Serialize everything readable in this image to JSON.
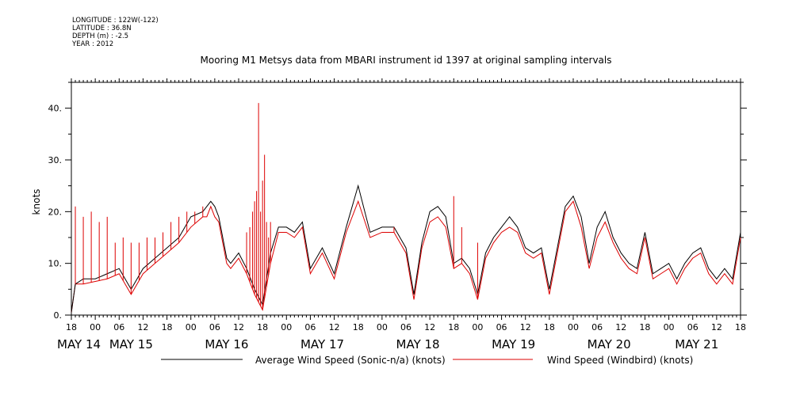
{
  "meta": {
    "longitude": "LONGITUDE : 122W(-122)",
    "latitude": "LATITUDE : 36.8N",
    "depth": "DEPTH (m) : -2.5",
    "year": "YEAR : 2012"
  },
  "chart_data": {
    "type": "line",
    "title": "Mooring M1 Metsys data from MBARI instrument id 1397 at original sampling intervals",
    "xlabel": "",
    "ylabel": "knots",
    "grid": false,
    "legend_position": "bottom",
    "xlim_hours": [
      0,
      168
    ],
    "ylim": [
      0,
      45
    ],
    "y_ticks": [
      "0.",
      "10.",
      "20.",
      "30.",
      "40."
    ],
    "x_hour_ticks": [
      "18",
      "00",
      "06",
      "12",
      "18",
      "00",
      "06",
      "12",
      "18",
      "00",
      "06",
      "12",
      "18",
      "00",
      "06",
      "12",
      "18",
      "00",
      "06",
      "12",
      "18",
      "00",
      "06",
      "12",
      "18",
      "00",
      "06",
      "12",
      "18"
    ],
    "date_labels": [
      "MAY 14",
      "MAY 15",
      "MAY 16",
      "MAY 17",
      "MAY 18",
      "MAY 19",
      "MAY 20",
      "MAY 21"
    ],
    "x_unit": "hours after May 14 18:00 (2012)",
    "series": [
      {
        "name": "Average Wind Speed (Sonic-n/a) (knots)",
        "color": "#000000",
        "x": [
          0,
          1,
          2,
          3,
          6,
          9,
          12,
          15,
          18,
          21,
          24,
          27,
          30,
          33,
          34,
          35,
          36,
          37,
          38,
          39,
          40,
          42,
          44,
          46,
          48,
          50,
          52,
          54,
          56,
          58,
          60,
          63,
          66,
          69,
          72,
          75,
          78,
          81,
          84,
          86,
          88,
          90,
          92,
          94,
          96,
          98,
          100,
          102,
          104,
          106,
          108,
          110,
          112,
          114,
          116,
          118,
          120,
          122,
          124,
          126,
          128,
          130,
          132,
          134,
          136,
          138,
          140,
          142,
          144,
          146,
          148,
          150,
          152,
          154,
          156,
          158,
          160,
          162,
          164,
          166,
          168
        ],
        "values": [
          0.5,
          6,
          6.5,
          7,
          7,
          8,
          9,
          5,
          9,
          11,
          13,
          15,
          19,
          20,
          21,
          22,
          21,
          19,
          15,
          11,
          10,
          12,
          9,
          5,
          2,
          12,
          17,
          17,
          16,
          18,
          9,
          13,
          8,
          17,
          25,
          16,
          17,
          17,
          13,
          4,
          14,
          20,
          21,
          19,
          10,
          11,
          9,
          4,
          12,
          15,
          17,
          19,
          17,
          13,
          12,
          13,
          5,
          13,
          21,
          23,
          19,
          10,
          17,
          20,
          15,
          12,
          10,
          9,
          16,
          8,
          9,
          10,
          7,
          10,
          12,
          13,
          9,
          7,
          9,
          7,
          16
        ]
      },
      {
        "name": "Wind Speed (Windbird) (knots)",
        "color": "#dd0000",
        "x": [
          0,
          1,
          2,
          3,
          6,
          9,
          12,
          15,
          18,
          21,
          24,
          27,
          30,
          33,
          34,
          35,
          36,
          37,
          38,
          39,
          40,
          42,
          44,
          46,
          48,
          50,
          52,
          54,
          56,
          58,
          60,
          63,
          66,
          69,
          72,
          75,
          78,
          81,
          84,
          86,
          88,
          90,
          92,
          94,
          96,
          98,
          100,
          102,
          104,
          106,
          108,
          110,
          112,
          114,
          116,
          118,
          120,
          122,
          124,
          126,
          128,
          130,
          132,
          134,
          136,
          138,
          140,
          142,
          144,
          146,
          148,
          150,
          152,
          154,
          156,
          158,
          160,
          162,
          164,
          166,
          168
        ],
        "values": [
          0.5,
          6,
          6,
          6,
          6.5,
          7,
          8,
          4,
          8,
          10,
          12,
          14,
          17,
          19,
          19,
          21,
          19,
          18,
          14,
          10,
          9,
          11,
          8,
          4,
          1,
          10,
          16,
          16,
          15,
          17,
          8,
          12,
          7,
          16,
          22,
          15,
          16,
          16,
          12,
          3,
          13,
          18,
          19,
          17,
          9,
          10,
          8,
          3,
          11,
          14,
          16,
          17,
          16,
          12,
          11,
          12,
          4,
          12,
          20,
          22,
          17,
          9,
          15,
          18,
          14,
          11,
          9,
          8,
          15,
          7,
          8,
          9,
          6,
          9,
          11,
          12,
          8,
          6,
          8,
          6,
          15
        ]
      }
    ],
    "spikes": {
      "series": "Wind Speed (Windbird) (knots)",
      "x": [
        1,
        3,
        5,
        7,
        9,
        11,
        13,
        15,
        17,
        19,
        21,
        23,
        25,
        27,
        29,
        31,
        33,
        44,
        44.8,
        45.5,
        46,
        46.5,
        47,
        47.5,
        48,
        48.5,
        49,
        49.5,
        50,
        81,
        96,
        98,
        102
      ],
      "values": [
        21,
        19,
        20,
        18,
        19,
        14,
        15,
        14,
        14,
        15,
        15,
        16,
        18,
        19,
        20,
        20,
        21,
        16,
        17,
        20,
        22,
        24,
        41,
        20,
        26,
        31,
        18,
        15,
        18,
        17,
        23,
        17,
        14
      ]
    }
  },
  "legend": {
    "item1": "Average Wind Speed (Sonic-n/a) (knots)",
    "item2": "Wind Speed (Windbird) (knots)"
  }
}
